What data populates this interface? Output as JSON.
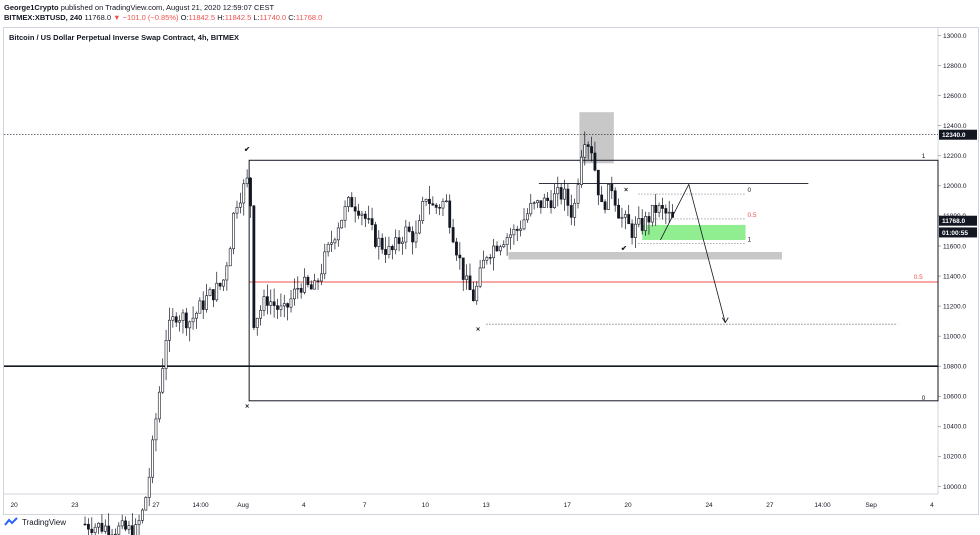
{
  "header": {
    "author": "George1Crypto",
    "published_text": "published on TradingView.com, August 21, 2020 12:59:07 CEST"
  },
  "symbol_bar": {
    "symbol": "BITMEX:XBTUSD, 240",
    "last": "11768.0",
    "arrow": "▼",
    "change": "−101.0 (−0.85%)",
    "o_label": "O:",
    "o": "11842.5",
    "h_label": "H:",
    "h": "11842.5",
    "l_label": "L:",
    "l": "11740.0",
    "c_label": "C:",
    "c": "11768.0"
  },
  "footer": {
    "brand": "TradingView"
  },
  "colors": {
    "candle_body": "#131722",
    "red_line": "#ef5350",
    "green_zone": "#90ee90",
    "gray_zone": "#c8c8c8",
    "price_tag_bg": "#131722"
  },
  "chart_data": {
    "type": "candlestick",
    "title": "Bitcoin / US Dollar Perpetual Inverse Swap Contract, 4h, BITMEX",
    "ylim": [
      9950,
      13050
    ],
    "yticks": [
      10000,
      10200,
      10400,
      10600,
      10800,
      11000,
      11200,
      11400,
      11600,
      11800,
      12000,
      12200,
      12400,
      12600,
      12800,
      13000
    ],
    "ytick_labels": [
      "10000.0",
      "10200.0",
      "10400.0",
      "10600.0",
      "10800.0",
      "11000.0",
      "11200.0",
      "11400.0",
      "11600.0",
      "11800.0",
      "12000.0",
      "12200.0",
      "12400.0",
      "12600.0",
      "12800.0",
      "13000.0"
    ],
    "xticks": [
      {
        "label": "20",
        "day": -11.3
      },
      {
        "label": "23",
        "day": -8.3
      },
      {
        "label": "27",
        "day": -4.3
      },
      {
        "label": "14:00",
        "day": -2.1
      },
      {
        "label": "Aug",
        "day": 0
      },
      {
        "label": "4",
        "day": 3
      },
      {
        "label": "7",
        "day": 6
      },
      {
        "label": "10",
        "day": 9
      },
      {
        "label": "13",
        "day": 12
      },
      {
        "label": "17",
        "day": 16
      },
      {
        "label": "20",
        "day": 19
      },
      {
        "label": "24",
        "day": 23
      },
      {
        "label": "27",
        "day": 26
      },
      {
        "label": "14:00",
        "day": 28.6
      },
      {
        "label": "Sep",
        "day": 31
      },
      {
        "label": "4",
        "day": 34
      }
    ],
    "xlim_days": [
      -11.8,
      34.3
    ],
    "price_tags": [
      {
        "value": "12340.0",
        "price": 12340
      },
      {
        "value": "11768.0",
        "price": 11768
      },
      {
        "value": "01:00:55",
        "price": 11690
      }
    ],
    "series_waypoints": [
      [
        -7.8,
        9750
      ],
      [
        -5.3,
        9700
      ],
      [
        -4.9,
        9850
      ],
      [
        -4.6,
        10100
      ],
      [
        -4.3,
        10450
      ],
      [
        -3.8,
        11000
      ],
      [
        -3.3,
        11150
      ],
      [
        -2.6,
        11100
      ],
      [
        -1.8,
        11250
      ],
      [
        -1.0,
        11350
      ],
      [
        -0.6,
        11650
      ],
      [
        -0.4,
        11880
      ],
      [
        0.3,
        12050
      ],
      [
        0.4,
        11800
      ],
      [
        0.5,
        11100
      ],
      [
        1.2,
        11250
      ],
      [
        2.0,
        11150
      ],
      [
        2.8,
        11350
      ],
      [
        3.5,
        11300
      ],
      [
        4.0,
        11500
      ],
      [
        4.7,
        11750
      ],
      [
        5.3,
        11900
      ],
      [
        5.8,
        11850
      ],
      [
        6.5,
        11650
      ],
      [
        7.3,
        11550
      ],
      [
        8.0,
        11700
      ],
      [
        8.6,
        11650
      ],
      [
        9.0,
        11950
      ],
      [
        9.4,
        11850
      ],
      [
        10.0,
        11900
      ],
      [
        10.6,
        11550
      ],
      [
        11.0,
        11350
      ],
      [
        11.4,
        11250
      ],
      [
        12.0,
        11550
      ],
      [
        12.8,
        11650
      ],
      [
        13.5,
        11700
      ],
      [
        14.2,
        11850
      ],
      [
        15.0,
        11900
      ],
      [
        15.8,
        11950
      ],
      [
        16.3,
        11800
      ],
      [
        16.8,
        12350
      ],
      [
        17.2,
        12250
      ],
      [
        17.7,
        11850
      ],
      [
        18.2,
        12000
      ],
      [
        18.6,
        11800
      ],
      [
        19.2,
        11700
      ],
      [
        19.8,
        11750
      ],
      [
        20.4,
        11850
      ],
      [
        21.0,
        11800
      ],
      [
        21.2,
        11768
      ]
    ],
    "annotations": {
      "range_box": {
        "day_start": 0.3,
        "day_end": 34.3,
        "top": 12170,
        "bottom": 10570
      },
      "fib_labels": [
        {
          "text": "1",
          "day": 33.5,
          "price": 12200
        },
        {
          "text": "0.5",
          "day": 33.1,
          "price": 11395
        },
        {
          "text": "0",
          "day": 33.5,
          "price": 10590
        }
      ],
      "red_mid_line": 11360,
      "support_line": 10800,
      "high_zone": {
        "day_start": 16.6,
        "day_end": 18.3,
        "top": 12490,
        "bottom": 12150
      },
      "gray_zone": {
        "day_start": 13.1,
        "day_end": 26.6,
        "top": 11560,
        "bottom": 11510
      },
      "green_zone": {
        "day_start": 19.7,
        "day_end": 24.8,
        "top": 11740,
        "bottom": 11640
      },
      "small_fib": {
        "day_start": 19.5,
        "day_end": 24.8,
        "levels": [
          11945,
          11780,
          11615
        ],
        "labels": [
          "0",
          "0.5",
          "1"
        ]
      },
      "top_line": {
        "day_start": 14.6,
        "day_end": 27.9,
        "price": 12015
      },
      "dotted_current_line": 12340,
      "dotted_low_line": {
        "day_start": 12.0,
        "day_end": 32.3,
        "price": 11080
      },
      "projection_path": [
        [
          20.6,
          11640
        ],
        [
          22.0,
          12010
        ],
        [
          23.8,
          11090
        ]
      ],
      "markers": [
        {
          "symbol": "✔",
          "day": 0.2,
          "price": 12230
        },
        {
          "symbol": "×",
          "day": 0.2,
          "price": 10520
        },
        {
          "symbol": "×",
          "day": 11.6,
          "price": 11030
        },
        {
          "symbol": "×",
          "day": 18.9,
          "price": 11960
        },
        {
          "symbol": "✔",
          "day": 18.8,
          "price": 11570
        }
      ]
    }
  }
}
